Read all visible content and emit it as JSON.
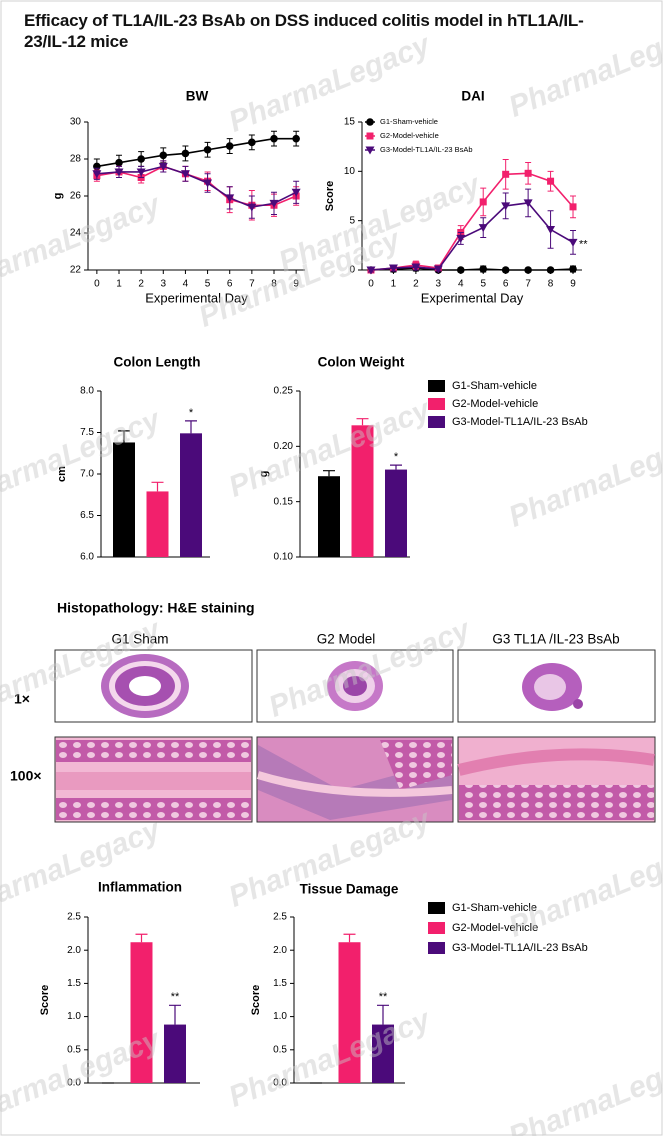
{
  "title": "Efficacy of TL1A/IL-23 BsAb on DSS induced colitis model in hTL1A/IL-23/IL-12 mice",
  "watermark": "PharmaLegacy",
  "chart_data": [
    {
      "type": "line",
      "title": "BW",
      "xlabel": "Experimental Day",
      "ylabel": "g",
      "x": [
        0,
        1,
        2,
        3,
        4,
        5,
        6,
        7,
        8,
        9
      ],
      "xlim": [
        -0.4,
        9.4
      ],
      "xticks": [
        0,
        1,
        2,
        3,
        4,
        5,
        6,
        7,
        8,
        9
      ],
      "ylim": [
        22,
        30
      ],
      "yticks": [
        22,
        24,
        26,
        28,
        30
      ],
      "series": [
        {
          "color": "#000000",
          "marker": "circle",
          "values": [
            27.6,
            27.8,
            28.0,
            28.2,
            28.3,
            28.5,
            28.7,
            28.9,
            29.1,
            29.1
          ],
          "errors": [
            0.4,
            0.4,
            0.4,
            0.4,
            0.4,
            0.4,
            0.4,
            0.4,
            0.4,
            0.4
          ]
        },
        {
          "color": "#f2206c",
          "marker": "square",
          "values": [
            27.1,
            27.3,
            27.0,
            27.6,
            27.2,
            26.8,
            25.8,
            25.5,
            25.5,
            26.0
          ],
          "errors": [
            0.3,
            0.3,
            0.3,
            0.3,
            0.4,
            0.5,
            0.7,
            0.8,
            0.6,
            0.5
          ]
        },
        {
          "color": "#4b0a7a",
          "marker": "triangle",
          "values": [
            27.2,
            27.3,
            27.3,
            27.6,
            27.2,
            26.7,
            25.9,
            25.4,
            25.6,
            26.2
          ],
          "errors": [
            0.3,
            0.3,
            0.3,
            0.3,
            0.4,
            0.5,
            0.6,
            0.6,
            0.6,
            0.6
          ]
        }
      ]
    },
    {
      "type": "line",
      "title": "DAI",
      "xlabel": "Experimental Day",
      "ylabel": "Score",
      "legend": "top-left",
      "x": [
        0,
        1,
        2,
        3,
        4,
        5,
        6,
        7,
        8,
        9
      ],
      "xlim": [
        -0.4,
        9.4
      ],
      "xticks": [
        0,
        1,
        2,
        3,
        4,
        5,
        6,
        7,
        8,
        9
      ],
      "ylim": [
        0,
        15
      ],
      "yticks": [
        0,
        5,
        10,
        15
      ],
      "series": [
        {
          "name": "G1-Sham-vehicle",
          "color": "#000000",
          "marker": "circle",
          "values": [
            0,
            0.1,
            0.2,
            0,
            0,
            0.1,
            0,
            0,
            0,
            0.1
          ],
          "errors": [
            0.2,
            0.3,
            0.3,
            0.2,
            0.2,
            0.3,
            0.2,
            0.2,
            0.2,
            0.3
          ]
        },
        {
          "name": "G2-Model-vehicle",
          "color": "#f2206c",
          "marker": "square",
          "values": [
            0,
            0.2,
            0.5,
            0.2,
            3.8,
            6.9,
            9.7,
            9.8,
            9.0,
            6.4
          ],
          "errors": [
            0.2,
            0.3,
            0.4,
            0.3,
            0.7,
            1.4,
            1.5,
            1.1,
            1.0,
            1.1
          ]
        },
        {
          "name": "G3-Model-TL1A/IL-23 BsAb",
          "color": "#4b0a7a",
          "marker": "triangle",
          "values": [
            0,
            0.2,
            0.3,
            0.1,
            3.2,
            4.3,
            6.5,
            6.8,
            4.1,
            2.8
          ],
          "errors": [
            0.2,
            0.3,
            0.3,
            0.2,
            0.6,
            1.0,
            1.3,
            1.4,
            1.9,
            1.2
          ],
          "significance": [
            null,
            null,
            null,
            null,
            null,
            null,
            null,
            null,
            null,
            "**"
          ]
        }
      ]
    },
    {
      "type": "bar",
      "title": "Colon Length",
      "ylabel": "cm",
      "ylim": [
        6,
        8
      ],
      "yticks": [
        {
          "value": 6,
          "label": "6.0"
        },
        {
          "value": 6.5,
          "label": "6.5"
        },
        {
          "value": 7,
          "label": "7.0"
        },
        {
          "value": 7.5,
          "label": "7.5"
        },
        {
          "value": 8,
          "label": "8.0"
        }
      ],
      "series": [
        {
          "color": "#000000",
          "values": [
            7.38
          ],
          "errors": [
            0.14
          ]
        },
        {
          "color": "#f2206c",
          "values": [
            6.79
          ],
          "errors": [
            0.11
          ]
        },
        {
          "color": "#4b0a7a",
          "values": [
            7.49
          ],
          "errors": [
            0.15
          ],
          "significance": [
            "*"
          ]
        }
      ]
    },
    {
      "type": "bar",
      "title": "Colon Weight",
      "ylabel": "g",
      "legend": "right",
      "ylim": [
        0.1,
        0.25
      ],
      "yticks": [
        {
          "value": 0.1,
          "label": "0.10"
        },
        {
          "value": 0.15,
          "label": "0.15"
        },
        {
          "value": 0.2,
          "label": "0.20"
        },
        {
          "value": 0.25,
          "label": "0.25"
        }
      ],
      "series": [
        {
          "name": "G1-Sham-vehicle",
          "color": "#000000",
          "values": [
            0.173
          ],
          "errors": [
            0.005
          ]
        },
        {
          "name": "G2-Model-vehicle",
          "color": "#f2206c",
          "values": [
            0.219
          ],
          "errors": [
            0.006
          ]
        },
        {
          "name": "G3-Model-TL1A/IL-23 BsAb",
          "color": "#4b0a7a",
          "values": [
            0.179
          ],
          "errors": [
            0.004
          ],
          "significance": [
            "*"
          ]
        }
      ]
    },
    {
      "type": "bar",
      "title": "Inflammation",
      "ylabel": "Score",
      "ylim": [
        0,
        2.5
      ],
      "yticks": [
        {
          "value": 0,
          "label": "0.0"
        },
        0.5,
        {
          "value": 1,
          "label": "1.0"
        },
        1.5,
        {
          "value": 2,
          "label": "2.0"
        },
        2.5
      ],
      "series": [
        {
          "color": "#000000",
          "values": [
            0
          ],
          "errors": [
            0
          ]
        },
        {
          "color": "#f2206c",
          "values": [
            2.12
          ],
          "errors": [
            0.12
          ]
        },
        {
          "color": "#4b0a7a",
          "values": [
            0.88
          ],
          "errors": [
            0.29
          ],
          "significance": [
            "**"
          ]
        }
      ]
    },
    {
      "type": "bar",
      "title": "Tissue Damage",
      "ylabel": "Score",
      "legend": "right",
      "ylim": [
        0,
        2.5
      ],
      "yticks": [
        {
          "value": 0,
          "label": "0.0"
        },
        0.5,
        {
          "value": 1,
          "label": "1.0"
        },
        1.5,
        {
          "value": 2,
          "label": "2.0"
        },
        2.5
      ],
      "series": [
        {
          "name": "G1-Sham-vehicle",
          "color": "#000000",
          "values": [
            0
          ],
          "errors": [
            0
          ]
        },
        {
          "name": "G2-Model-vehicle",
          "color": "#f2206c",
          "values": [
            2.12
          ],
          "errors": [
            0.12
          ]
        },
        {
          "name": "G3-Model-TL1A/IL-23 BsAb",
          "color": "#4b0a7a",
          "values": [
            0.88
          ],
          "errors": [
            0.29
          ],
          "significance": [
            "**"
          ]
        }
      ]
    }
  ],
  "histology": {
    "title": "Histopathology: H&E staining",
    "columns": [
      "G1 Sham",
      "G2 Model",
      "G3 TL1A /IL-23  BsAb"
    ],
    "rows": [
      "1×",
      "100×"
    ]
  }
}
